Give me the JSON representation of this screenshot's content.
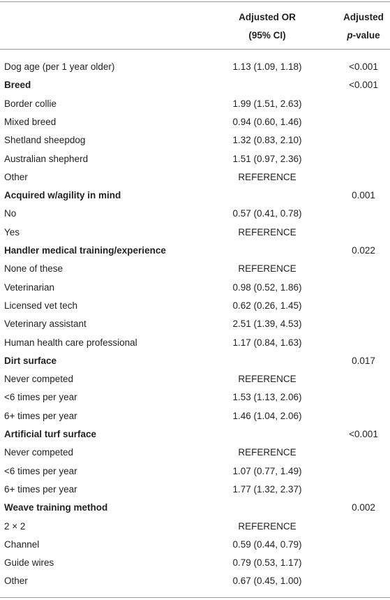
{
  "table": {
    "header": {
      "or": {
        "line1": "Adjusted OR",
        "line2": "(95% CI)"
      },
      "p": {
        "line1": "Adjusted",
        "italic": "p",
        "rest": "-value"
      }
    },
    "rows": [
      {
        "label": "Dog age (per 1 year older)",
        "or": "1.13 (1.09, 1.18)",
        "p": "<0.001"
      },
      {
        "label": "Breed",
        "bold": true,
        "p": "<0.001"
      },
      {
        "label": "Border collie",
        "or": "1.99 (1.51, 2.63)"
      },
      {
        "label": "Mixed breed",
        "or": "0.94 (0.60, 1.46)"
      },
      {
        "label": "Shetland sheepdog",
        "or": "1.32 (0.83, 2.10)"
      },
      {
        "label": "Australian shepherd",
        "or": "1.51 (0.97, 2.36)"
      },
      {
        "label": "Other",
        "or": "REFERENCE"
      },
      {
        "label": "Acquired w/agility in mind",
        "bold": true,
        "p": "0.001"
      },
      {
        "label": "No",
        "or": "0.57 (0.41, 0.78)"
      },
      {
        "label": "Yes",
        "or": "REFERENCE"
      },
      {
        "label": "Handler medical training/experience",
        "bold": true,
        "p": "0.022"
      },
      {
        "label": "None of these",
        "or": "REFERENCE"
      },
      {
        "label": "Veterinarian",
        "or": "0.98 (0.52, 1.86)"
      },
      {
        "label": "Licensed vet tech",
        "or": "0.62 (0.26, 1.45)"
      },
      {
        "label": "Veterinary assistant",
        "or": "2.51 (1.39, 4.53)"
      },
      {
        "label": "Human health care professional",
        "or": "1.17 (0.84, 1.63)"
      },
      {
        "label": "Dirt surface",
        "bold": true,
        "p": "0.017"
      },
      {
        "label": "Never competed",
        "or": "REFERENCE"
      },
      {
        "label": "<6 times per year",
        "or": "1.53 (1.13, 2.06)"
      },
      {
        "label": "6+ times per year",
        "or": "1.46 (1.04, 2.06)"
      },
      {
        "label": "Artificial turf surface",
        "bold": true,
        "p": "<0.001"
      },
      {
        "label": "Never competed",
        "or": "REFERENCE"
      },
      {
        "label": "<6 times per year",
        "or": "1.07 (0.77, 1.49)"
      },
      {
        "label": "6+ times per year",
        "or": "1.77 (1.32, 2.37)"
      },
      {
        "label": "Weave training method",
        "bold": true,
        "p": "0.002"
      },
      {
        "label": "2 × 2",
        "or": "REFERENCE"
      },
      {
        "label": "Channel",
        "or": "0.59 (0.44, 0.79)"
      },
      {
        "label": "Guide wires",
        "or": "0.79 (0.53, 1.17)"
      },
      {
        "label": "Other",
        "or": "0.67 (0.45, 1.00)"
      }
    ]
  }
}
